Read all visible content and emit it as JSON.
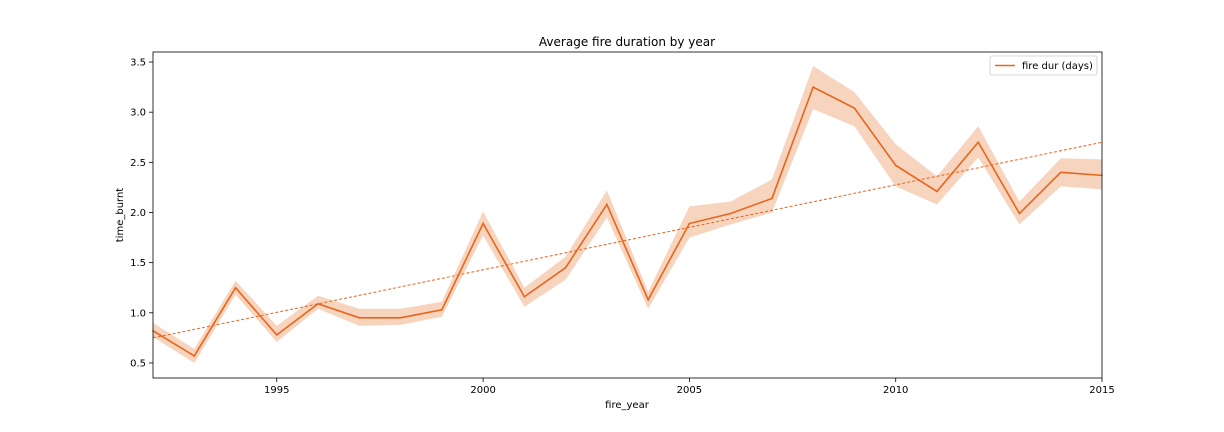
{
  "chart_data": {
    "type": "line",
    "title": "Average fire duration by year",
    "xlabel": "fire_year",
    "ylabel": "time_burnt",
    "xlim": [
      1992,
      2015
    ],
    "ylim": [
      0.35,
      3.6
    ],
    "xticks": [
      1995,
      2000,
      2005,
      2010,
      2015
    ],
    "yticks": [
      0.5,
      1.0,
      1.5,
      2.0,
      2.5,
      3.0,
      3.5
    ],
    "grid": false,
    "legend_position": "top-right",
    "colors": {
      "line": "#e8651d",
      "band": "#f6cdb2",
      "trend": "#e8651d"
    },
    "series": [
      {
        "name": "fire dur (days)",
        "x": [
          1992,
          1993,
          1994,
          1995,
          1996,
          1997,
          1998,
          1999,
          2000,
          2001,
          2002,
          2003,
          2004,
          2005,
          2006,
          2007,
          2008,
          2009,
          2010,
          2011,
          2012,
          2013,
          2014,
          2015
        ],
        "values": [
          0.82,
          0.57,
          1.25,
          0.78,
          1.09,
          0.95,
          0.95,
          1.03,
          1.89,
          1.16,
          1.45,
          2.08,
          1.13,
          1.89,
          1.99,
          2.14,
          3.25,
          3.04,
          2.47,
          2.21,
          2.7,
          1.99,
          2.4,
          2.37
        ],
        "ci_low": [
          0.76,
          0.5,
          1.18,
          0.71,
          1.04,
          0.87,
          0.88,
          0.96,
          1.77,
          1.06,
          1.33,
          1.95,
          1.04,
          1.75,
          1.88,
          2.0,
          3.03,
          2.86,
          2.26,
          2.08,
          2.55,
          1.88,
          2.26,
          2.23
        ],
        "ci_high": [
          0.9,
          0.64,
          1.32,
          0.87,
          1.17,
          1.04,
          1.04,
          1.11,
          2.01,
          1.25,
          1.56,
          2.22,
          1.21,
          2.06,
          2.11,
          2.33,
          3.46,
          3.2,
          2.68,
          2.36,
          2.86,
          2.11,
          2.54,
          2.53
        ]
      }
    ],
    "trendline": {
      "x": [
        1992,
        2015
      ],
      "values": [
        0.75,
        2.7
      ]
    }
  }
}
